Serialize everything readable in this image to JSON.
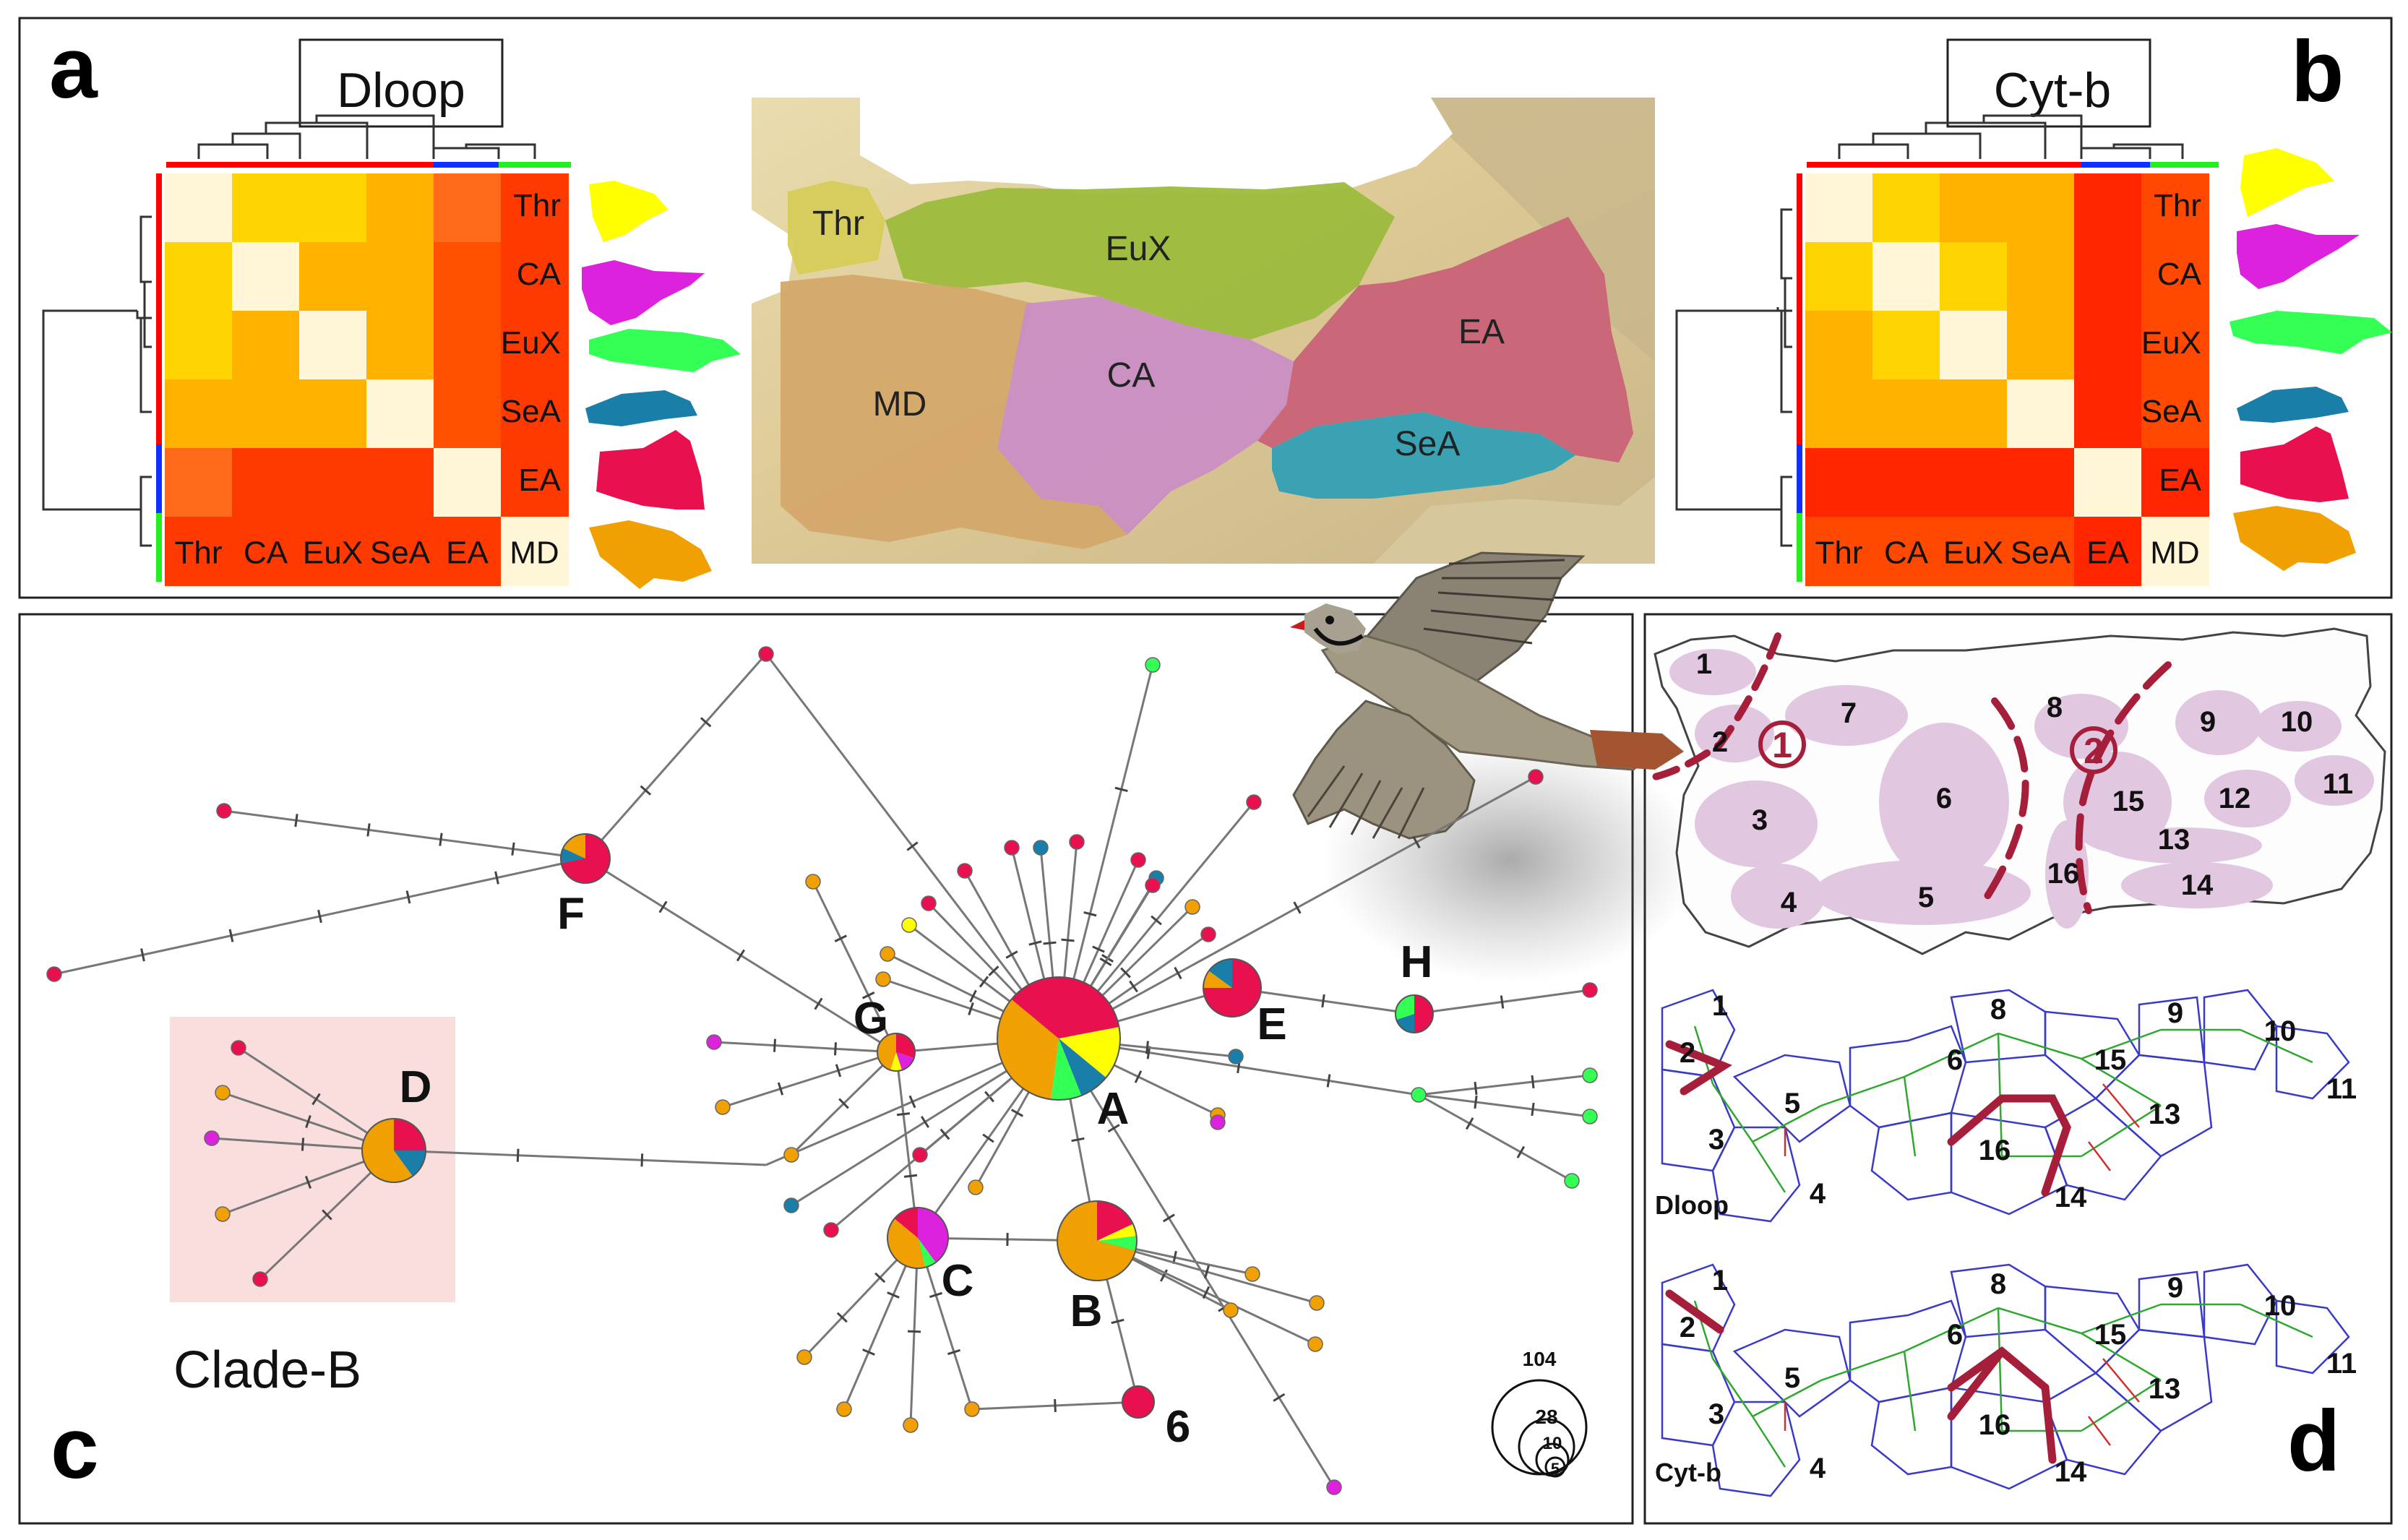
{
  "panels": {
    "a": "a",
    "b": "b",
    "c": "c",
    "d": "d"
  },
  "heatmap_a": {
    "title": "Dloop",
    "row_labels": [
      "Thr",
      "CA",
      "EuX",
      "SeA",
      "EA",
      "MD"
    ],
    "col_labels": [
      "Thr",
      "CA",
      "EuX",
      "SeA",
      "EA",
      "MD"
    ],
    "matrix": [
      [
        "#fff6d8",
        "#ffd400",
        "#ffd400",
        "#ffb300",
        "#ff6a1a",
        "#ff3a00"
      ],
      [
        "#ffd400",
        "#fff6d8",
        "#ffb300",
        "#ffb300",
        "#ff5000",
        "#ff3a00"
      ],
      [
        "#ffd400",
        "#ffb300",
        "#fff6d8",
        "#ffb300",
        "#ff5000",
        "#ff3a00"
      ],
      [
        "#ffb300",
        "#ffb300",
        "#ffb300",
        "#fff6d8",
        "#ff5000",
        "#ff3a00"
      ],
      [
        "#ff6a1a",
        "#ff3a00",
        "#ff3a00",
        "#ff3a00",
        "#fff6d8",
        "#ff3a00"
      ],
      [
        "#ff3a00",
        "#ff3a00",
        "#ff3a00",
        "#ff3a00",
        "#ff3a00",
        "#fff6d8"
      ]
    ]
  },
  "heatmap_b": {
    "title": "Cyt-b",
    "row_labels": [
      "Thr",
      "CA",
      "EuX",
      "SeA",
      "EA",
      "MD"
    ],
    "col_labels": [
      "Thr",
      "CA",
      "EuX",
      "SeA",
      "EA",
      "MD"
    ],
    "matrix": [
      [
        "#fff6d8",
        "#ffd400",
        "#ffb300",
        "#ffb300",
        "#ff2600",
        "#ff4800"
      ],
      [
        "#ffd400",
        "#fff6d8",
        "#ffd400",
        "#ffb300",
        "#ff2600",
        "#ff4800"
      ],
      [
        "#ffb300",
        "#ffd400",
        "#fff6d8",
        "#ffb300",
        "#ff2600",
        "#ff4800"
      ],
      [
        "#ffb300",
        "#ffb300",
        "#ffb300",
        "#fff6d8",
        "#ff2600",
        "#ff4800"
      ],
      [
        "#ff2600",
        "#ff2600",
        "#ff2600",
        "#ff2600",
        "#fff6d8",
        "#ff2600"
      ],
      [
        "#ff4800",
        "#ff4800",
        "#ff4800",
        "#ff4800",
        "#ff2600",
        "#fff6d8"
      ]
    ]
  },
  "region_colors": {
    "Thr": "#ffff00",
    "CA": "#dd22dd",
    "EuX": "#33ff55",
    "SeA": "#1a7fa8",
    "EA": "#e8104e",
    "MD": "#f0a000"
  },
  "map": {
    "regions": [
      "Thr",
      "EuX",
      "MD",
      "CA",
      "EA",
      "SeA"
    ]
  },
  "network": {
    "labels": [
      "A",
      "B",
      "C",
      "D",
      "E",
      "F",
      "G",
      "H",
      "6"
    ],
    "clade_label": "Clade-B",
    "legend_sizes": [
      "104",
      "28",
      "10",
      "5"
    ]
  },
  "sites_map": {
    "sites": [
      "1",
      "2",
      "3",
      "4",
      "5",
      "6",
      "7",
      "8",
      "9",
      "10",
      "11",
      "12",
      "13",
      "14",
      "15",
      "16"
    ],
    "barriers": [
      "1",
      "2"
    ]
  },
  "networks_d": {
    "dloop_label": "Dloop",
    "cytb_label": "Cyt-b",
    "sites": [
      "1",
      "2",
      "3",
      "4",
      "5",
      "6",
      "8",
      "9",
      "10",
      "11",
      "13",
      "14",
      "15",
      "16"
    ]
  }
}
